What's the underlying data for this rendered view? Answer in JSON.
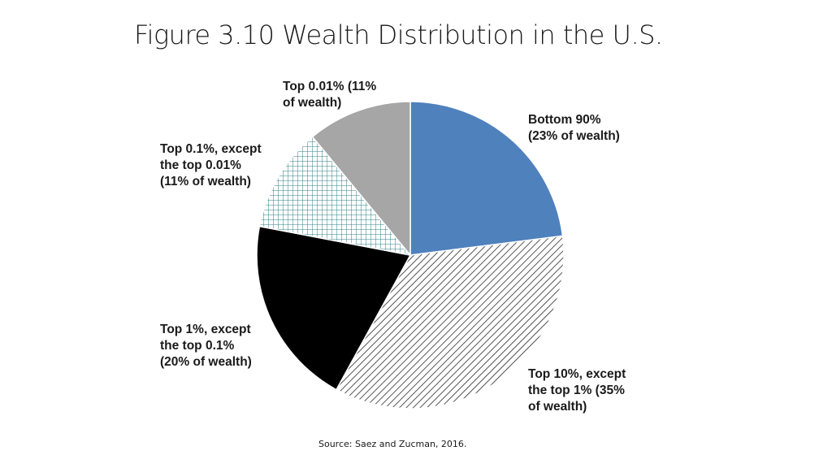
{
  "title": "Figure 3.10 Wealth Distribution in the U.S.",
  "source": "Source: Saez and Zucman, 2016.",
  "chart_data": {
    "type": "pie",
    "start_angle_deg": 0,
    "direction": "clockwise",
    "slices": [
      {
        "key": "bottom90",
        "label_lines": [
          "Bottom 90%",
          "(23% of wealth)"
        ],
        "value": 23,
        "fill": "#4f81bd",
        "pattern": "solid"
      },
      {
        "key": "top10",
        "label_lines": [
          "Top 10%, except",
          "the top 1% (35%",
          "of wealth)"
        ],
        "value": 35,
        "fill": "#ffffff",
        "pattern": "diagonal-hatch"
      },
      {
        "key": "top1",
        "label_lines": [
          "Top 1%, except",
          "the top 0.1%",
          "(20% of wealth)"
        ],
        "value": 20,
        "fill": "#000000",
        "pattern": "solid"
      },
      {
        "key": "top01",
        "label_lines": [
          "Top 0.1%, except",
          "the top 0.01%",
          "(11% of wealth)"
        ],
        "value": 11,
        "fill": "#ffffff",
        "pattern": "crosshatch-teal"
      },
      {
        "key": "top001",
        "label_lines": [
          "Top 0.01% (11%",
          "of wealth)"
        ],
        "value": 11,
        "fill": "#a6a6a6",
        "pattern": "solid"
      }
    ]
  }
}
